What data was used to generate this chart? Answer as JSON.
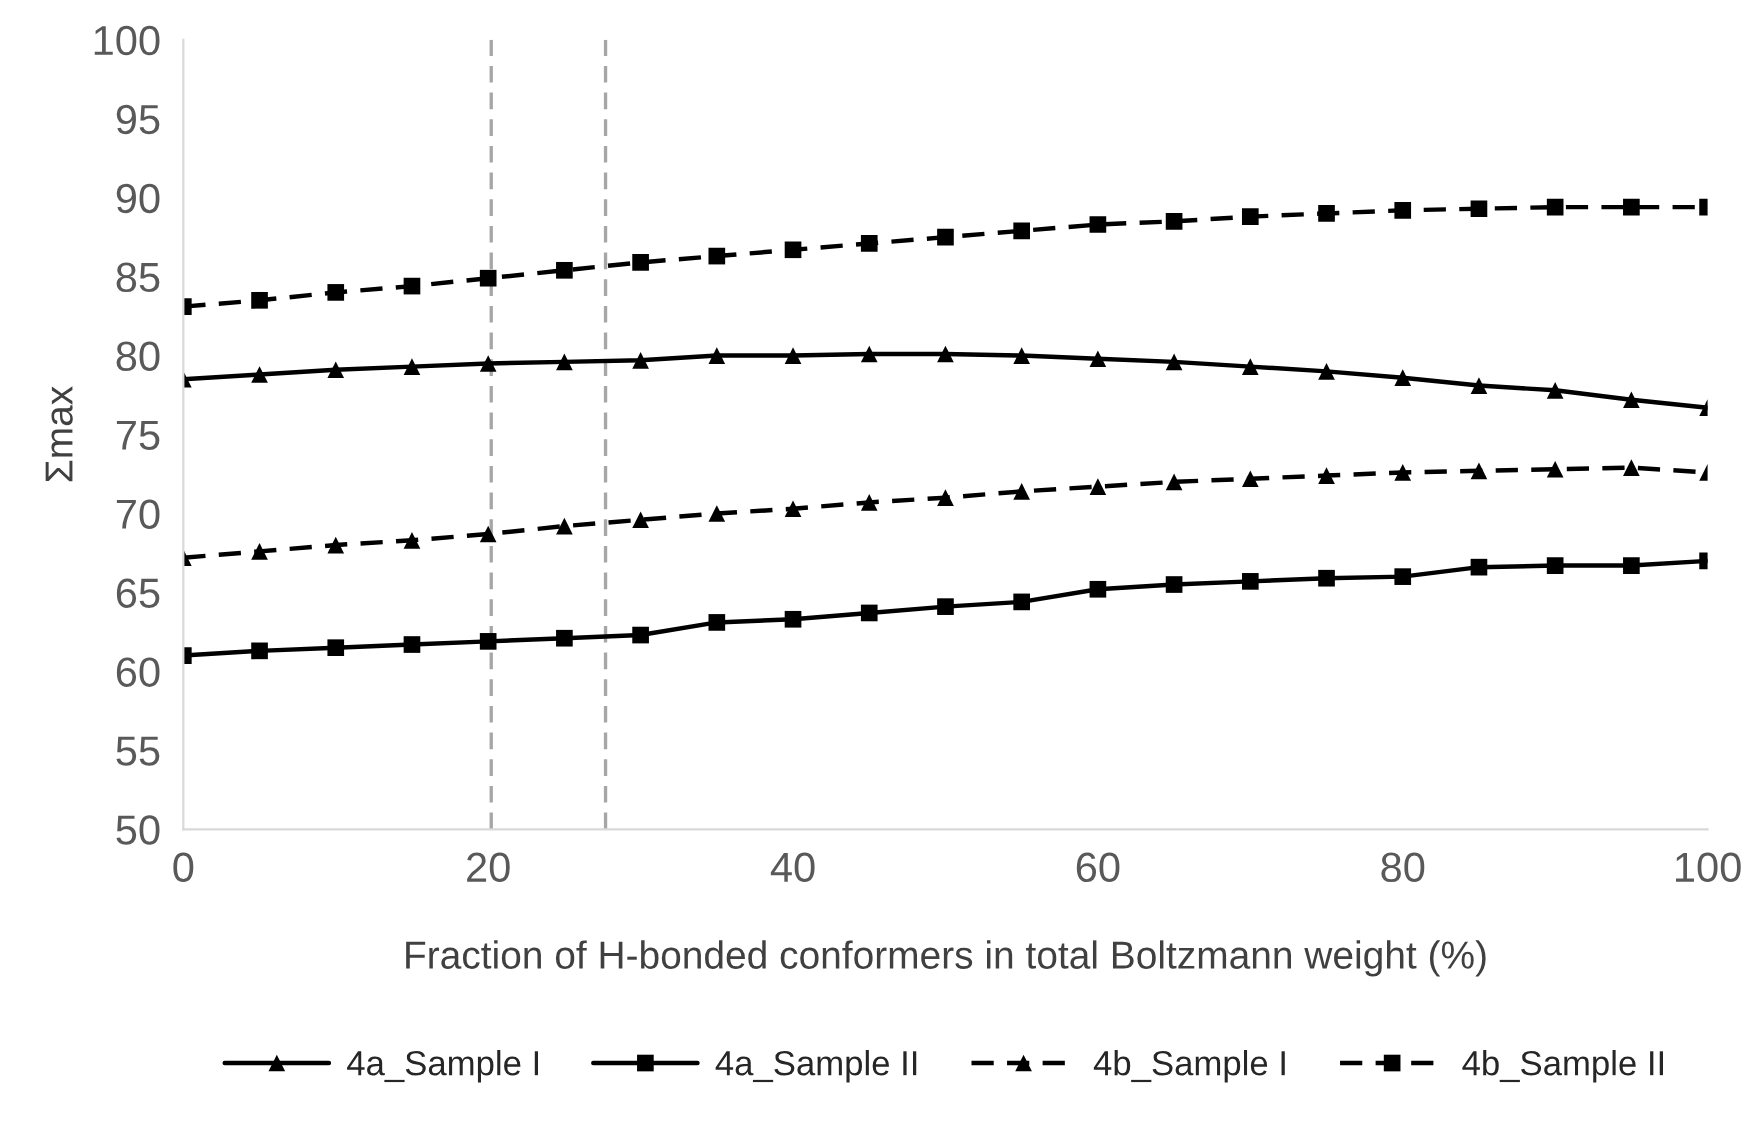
{
  "chart_data": {
    "type": "line",
    "xlabel": "Fraction of H-bonded conformers in total Boltzmann weight (%)",
    "ylabel": "Σmax",
    "x": [
      0,
      5,
      10,
      15,
      20,
      25,
      30,
      35,
      40,
      45,
      50,
      55,
      60,
      65,
      70,
      75,
      80,
      85,
      90,
      95,
      100
    ],
    "xlim": [
      0,
      100
    ],
    "xticks": [
      0,
      20,
      40,
      60,
      80,
      100
    ],
    "ylim": [
      50,
      100
    ],
    "yticks": [
      50,
      55,
      60,
      65,
      70,
      75,
      80,
      85,
      90,
      95,
      100
    ],
    "grid": false,
    "legend": "bottom",
    "ref_lines": [
      {
        "axis": "x",
        "value": 20.2,
        "color": "#a6a6a6",
        "line_style": "dashed"
      },
      {
        "axis": "x",
        "value": 27.7,
        "color": "#a6a6a6",
        "line_style": "dashed"
      }
    ],
    "series": [
      {
        "name": "4a_Sample I",
        "color": "#000000",
        "marker": "triangle",
        "line_style": "solid",
        "values": [
          78.5,
          78.8,
          79.1,
          79.3,
          79.5,
          79.6,
          79.7,
          80.0,
          80.0,
          80.1,
          80.1,
          80.0,
          79.8,
          79.6,
          79.3,
          79.0,
          78.6,
          78.1,
          77.8,
          77.2,
          76.7
        ]
      },
      {
        "name": "4a_Sample II",
        "color": "#000000",
        "marker": "square",
        "line_style": "solid",
        "values": [
          61.0,
          61.3,
          61.5,
          61.7,
          61.9,
          62.1,
          62.3,
          63.1,
          63.3,
          63.7,
          64.1,
          64.4,
          65.2,
          65.5,
          65.7,
          65.9,
          66.0,
          66.6,
          66.7,
          66.7,
          67.0
        ]
      },
      {
        "name": "4b_Sample I",
        "color": "#000000",
        "marker": "triangle",
        "line_style": "dashed",
        "values": [
          67.2,
          67.6,
          68.0,
          68.3,
          68.7,
          69.2,
          69.6,
          70.0,
          70.3,
          70.7,
          71.0,
          71.4,
          71.7,
          72.0,
          72.2,
          72.4,
          72.6,
          72.7,
          72.8,
          72.9,
          72.6
        ]
      },
      {
        "name": "4b_Sample II",
        "color": "#000000",
        "marker": "square",
        "line_style": "dashed",
        "values": [
          83.1,
          83.5,
          84.0,
          84.4,
          84.9,
          85.4,
          85.9,
          86.3,
          86.7,
          87.1,
          87.5,
          87.9,
          88.3,
          88.5,
          88.8,
          89.0,
          89.2,
          89.3,
          89.4,
          89.4,
          89.4
        ]
      }
    ]
  }
}
